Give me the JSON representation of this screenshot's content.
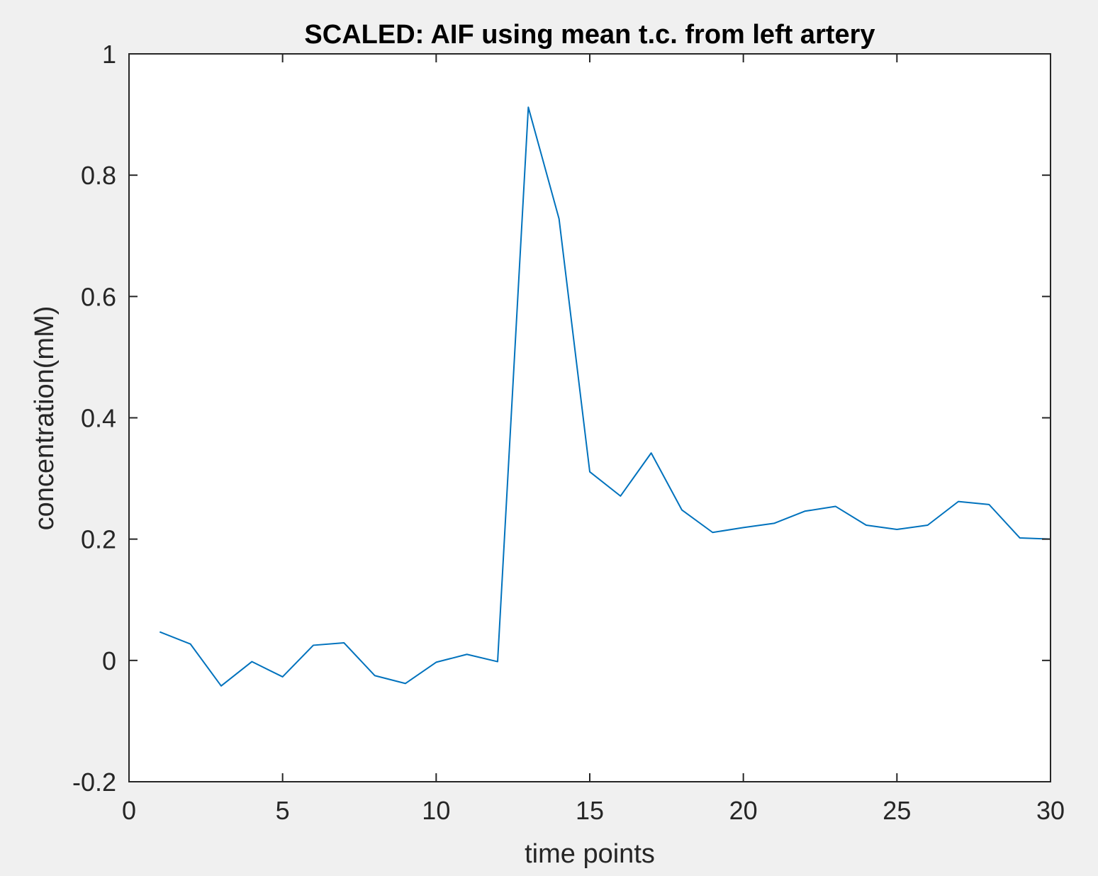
{
  "chart_data": {
    "type": "line",
    "title": "SCALED: AIF using mean t.c. from left artery",
    "xlabel": "time points",
    "ylabel": "concentration(mM)",
    "xlim": [
      0,
      30
    ],
    "ylim": [
      -0.2,
      1
    ],
    "xticks": [
      0,
      5,
      10,
      15,
      20,
      25,
      30
    ],
    "yticks": [
      -0.2,
      0,
      0.2,
      0.4,
      0.6,
      0.8,
      1
    ],
    "xtick_labels": [
      "0",
      "5",
      "10",
      "15",
      "20",
      "25",
      "30"
    ],
    "ytick_labels": [
      "-0.2",
      "0",
      "0.2",
      "0.4",
      "0.6",
      "0.8",
      "1"
    ],
    "grid": false,
    "series": [
      {
        "color": "#0072BD",
        "x": [
          1,
          2,
          3,
          4,
          5,
          6,
          7,
          8,
          9,
          10,
          11,
          12,
          13,
          14,
          15,
          16,
          17,
          18,
          19,
          20,
          21,
          22,
          23,
          24,
          25,
          26,
          27,
          28,
          29,
          30
        ],
        "y": [
          0.047,
          0.027,
          -0.042,
          -0.002,
          -0.027,
          0.025,
          0.029,
          -0.025,
          -0.038,
          -0.003,
          0.01,
          -0.002,
          0.912,
          0.728,
          0.311,
          0.271,
          0.342,
          0.248,
          0.211,
          0.219,
          0.226,
          0.246,
          0.254,
          0.223,
          0.216,
          0.223,
          0.262,
          0.257,
          0.202,
          0.2
        ]
      }
    ]
  }
}
